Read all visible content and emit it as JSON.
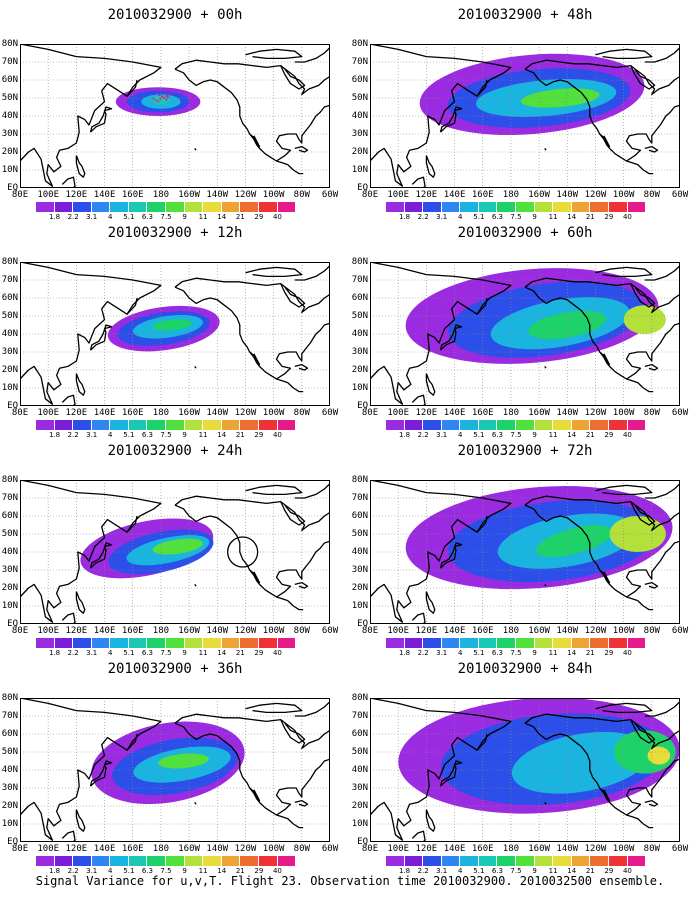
{
  "panels": [
    {
      "title": "2010032900 + 00h",
      "hour": 0
    },
    {
      "title": "2010032900 + 48h",
      "hour": 48
    },
    {
      "title": "2010032900 + 12h",
      "hour": 12
    },
    {
      "title": "2010032900 + 60h",
      "hour": 60
    },
    {
      "title": "2010032900 + 24h",
      "hour": 24
    },
    {
      "title": "2010032900 + 72h",
      "hour": 72
    },
    {
      "title": "2010032900 + 36h",
      "hour": 36
    },
    {
      "title": "2010032900 + 84h",
      "hour": 84
    }
  ],
  "lat_labels": [
    "80N",
    "70N",
    "60N",
    "50N",
    "40N",
    "30N",
    "20N",
    "10N",
    "EQ"
  ],
  "lon_labels": [
    "80E",
    "100E",
    "120E",
    "140E",
    "160E",
    "180",
    "160W",
    "140W",
    "120W",
    "100W",
    "80W",
    "60W"
  ],
  "colorbar": {
    "labels": [
      "1.8",
      "2.2",
      "3.1",
      "4",
      "5.1",
      "6.3",
      "7.5",
      "9",
      "11",
      "14",
      "21",
      "29",
      "40"
    ],
    "colors": [
      "#9b2be0",
      "#7a1ed8",
      "#2b4fe8",
      "#2f86f0",
      "#19b4e0",
      "#1ac8b4",
      "#1ed26a",
      "#52e03c",
      "#b4e03c",
      "#e8dc3a",
      "#eea434",
      "#ee6e32",
      "#ee3236",
      "#e61a8a"
    ]
  },
  "footer": "Signal Variance for u,v,T. Flight 23. Observation time 2010032900. 2010032500 ensemble."
}
